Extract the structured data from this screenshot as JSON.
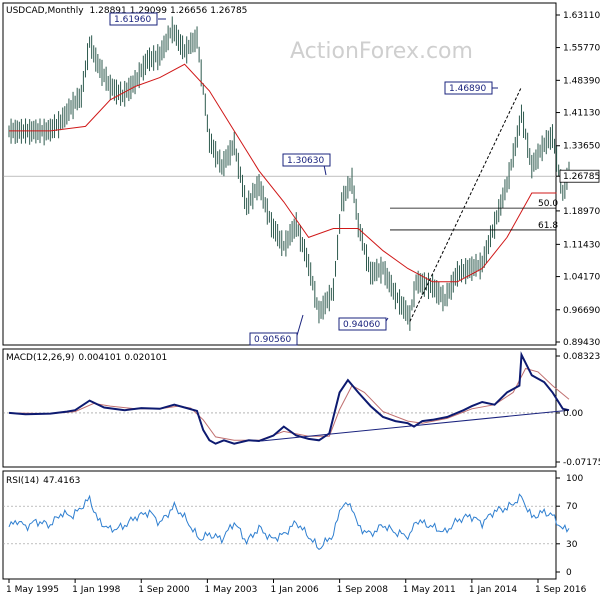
{
  "chart_data": {
    "type": "line",
    "symbol": "USDCAD",
    "timeframe": "Monthly",
    "ohlc_header": [
      "1.28891",
      "1.29099",
      "1.26656",
      "1.26785"
    ],
    "watermark": "ActionForex.com",
    "last_price_label": "1.26785",
    "x_ticks": [
      "1 May 1995",
      "1 Jan 1998",
      "1 Sep 2000",
      "1 May 2003",
      "1 Jan 2006",
      "1 Sep 2008",
      "1 May 2011",
      "1 Jan 2014",
      "1 Sep 2016"
    ],
    "colors": {
      "price": "#2e5a4e",
      "ma": "#d01818",
      "macd": "#0d1a70",
      "signal": "#c07070",
      "rsi": "#2f7fd0",
      "trend": "#1a237e",
      "fib": "#000000"
    },
    "price_panel": {
      "y_ticks": [
        "1.63110",
        "1.55770",
        "1.48390",
        "1.41130",
        "1.33650",
        "1.26785",
        "1.18970",
        "1.11430",
        "1.04170",
        "0.96690",
        "0.89430"
      ],
      "ylim": [
        0.8943,
        1.6311
      ],
      "annotations": [
        {
          "text": "1.61960",
          "date": "2002-01",
          "value": 1.6196
        },
        {
          "text": "1.30630",
          "date": "2007-11",
          "value": 1.3063
        },
        {
          "text": "0.90560",
          "date": "2007-11",
          "value": 0.9056
        },
        {
          "text": "0.94060",
          "date": "2011-07",
          "value": 0.9406
        },
        {
          "text": "1.46890",
          "date": "2016-01",
          "value": 1.4689
        }
      ],
      "fib_levels": [
        {
          "label": "50.0",
          "value": 1.1959
        },
        {
          "label": "61.8",
          "value": 1.1468
        }
      ],
      "series": [
        {
          "values": [
            [
              "1995-05",
              1.37
            ],
            [
              "1995-12",
              1.37
            ],
            [
              "1996-06",
              1.37
            ],
            [
              "1996-12",
              1.37
            ],
            [
              "1997-06",
              1.39
            ],
            [
              "1997-12",
              1.43
            ],
            [
              "1998-04",
              1.45
            ],
            [
              "1998-08",
              1.57
            ],
            [
              "1998-12",
              1.52
            ],
            [
              "1999-06",
              1.47
            ],
            [
              "1999-12",
              1.45
            ],
            [
              "2000-06",
              1.48
            ],
            [
              "2000-12",
              1.53
            ],
            [
              "2001-06",
              1.54
            ],
            [
              "2001-12",
              1.6
            ],
            [
              "2002-06",
              1.55
            ],
            [
              "2002-12",
              1.58
            ],
            [
              "2003-06",
              1.35
            ],
            [
              "2003-12",
              1.29
            ],
            [
              "2004-06",
              1.34
            ],
            [
              "2004-12",
              1.2
            ],
            [
              "2005-06",
              1.25
            ],
            [
              "2005-12",
              1.16
            ],
            [
              "2006-06",
              1.11
            ],
            [
              "2006-12",
              1.16
            ],
            [
              "2007-06",
              1.07
            ],
            [
              "2007-11",
              0.96
            ],
            [
              "2008-06",
              1.01
            ],
            [
              "2008-10",
              1.21
            ],
            [
              "2009-03",
              1.26
            ],
            [
              "2009-06",
              1.16
            ],
            [
              "2009-12",
              1.05
            ],
            [
              "2010-06",
              1.06
            ],
            [
              "2010-12",
              1.0
            ],
            [
              "2011-07",
              0.95
            ],
            [
              "2011-10",
              1.03
            ],
            [
              "2012-06",
              1.02
            ],
            [
              "2012-12",
              0.99
            ],
            [
              "2013-06",
              1.05
            ],
            [
              "2013-12",
              1.06
            ],
            [
              "2014-06",
              1.07
            ],
            [
              "2014-12",
              1.16
            ],
            [
              "2015-06",
              1.25
            ],
            [
              "2015-12",
              1.38
            ],
            [
              "2016-01",
              1.41
            ],
            [
              "2016-06",
              1.29
            ],
            [
              "2016-12",
              1.34
            ],
            [
              "2017-04",
              1.36
            ],
            [
              "2017-09",
              1.23
            ],
            [
              "2017-12",
              1.28
            ]
          ]
        },
        {
          "values": [
            [
              "1995-05",
              1.37
            ],
            [
              "1997-01",
              1.37
            ],
            [
              "1998-06",
              1.38
            ],
            [
              "1999-06",
              1.44
            ],
            [
              "2000-06",
              1.47
            ],
            [
              "2001-06",
              1.49
            ],
            [
              "2002-06",
              1.52
            ],
            [
              "2003-06",
              1.46
            ],
            [
              "2004-06",
              1.37
            ],
            [
              "2005-06",
              1.28
            ],
            [
              "2006-06",
              1.21
            ],
            [
              "2007-06",
              1.13
            ],
            [
              "2008-06",
              1.15
            ],
            [
              "2009-06",
              1.15
            ],
            [
              "2010-06",
              1.1
            ],
            [
              "2011-06",
              1.06
            ],
            [
              "2012-06",
              1.03
            ],
            [
              "2013-06",
              1.03
            ],
            [
              "2014-06",
              1.06
            ],
            [
              "2015-06",
              1.13
            ],
            [
              "2016-06",
              1.23
            ],
            [
              "2017-06",
              1.23
            ]
          ]
        }
      ]
    },
    "macd_panel": {
      "label": "MACD(12,26,9)",
      "values_header": [
        "0.004101",
        "0.020101"
      ],
      "y_ticks": [
        "0.083235",
        "0.00",
        "-0.071752"
      ],
      "ylim": [
        -0.071752,
        0.083235
      ],
      "series": [
        {
          "values": [
            [
              "1995-05",
              0.0
            ],
            [
              "1996-01",
              -0.002
            ],
            [
              "1997-01",
              -0.001
            ],
            [
              "1997-09",
              0.002
            ],
            [
              "1998-01",
              0.004
            ],
            [
              "1998-08",
              0.018
            ],
            [
              "1999-03",
              0.008
            ],
            [
              "2000-01",
              0.004
            ],
            [
              "2000-09",
              0.007
            ],
            [
              "2001-06",
              0.006
            ],
            [
              "2002-01",
              0.012
            ],
            [
              "2002-06",
              0.008
            ],
            [
              "2002-12",
              0.003
            ],
            [
              "2003-03",
              -0.025
            ],
            [
              "2003-06",
              -0.04
            ],
            [
              "2003-09",
              -0.045
            ],
            [
              "2004-01",
              -0.04
            ],
            [
              "2004-06",
              -0.045
            ],
            [
              "2005-01",
              -0.04
            ],
            [
              "2005-06",
              -0.041
            ],
            [
              "2006-01",
              -0.033
            ],
            [
              "2006-06",
              -0.02
            ],
            [
              "2006-12",
              -0.033
            ],
            [
              "2007-06",
              -0.038
            ],
            [
              "2007-11",
              -0.04
            ],
            [
              "2008-04",
              -0.03
            ],
            [
              "2008-09",
              0.03
            ],
            [
              "2009-01",
              0.048
            ],
            [
              "2009-06",
              0.03
            ],
            [
              "2009-12",
              0.01
            ],
            [
              "2010-06",
              -0.006
            ],
            [
              "2010-12",
              -0.012
            ],
            [
              "2011-06",
              -0.015
            ],
            [
              "2011-09",
              -0.02
            ],
            [
              "2012-01",
              -0.012
            ],
            [
              "2012-06",
              -0.01
            ],
            [
              "2013-01",
              -0.006
            ],
            [
              "2013-09",
              0.004
            ],
            [
              "2014-01",
              0.01
            ],
            [
              "2014-06",
              0.016
            ],
            [
              "2014-12",
              0.012
            ],
            [
              "2015-06",
              0.03
            ],
            [
              "2015-12",
              0.04
            ],
            [
              "2016-01",
              0.085
            ],
            [
              "2016-06",
              0.055
            ],
            [
              "2016-12",
              0.045
            ],
            [
              "2017-04",
              0.03
            ],
            [
              "2017-09",
              0.006
            ],
            [
              "2017-12",
              0.004
            ]
          ]
        },
        {
          "values": [
            [
              "1995-05",
              0.0
            ],
            [
              "1997-01",
              -0.001
            ],
            [
              "1998-01",
              0.002
            ],
            [
              "1998-10",
              0.014
            ],
            [
              "1999-06",
              0.01
            ],
            [
              "2000-06",
              0.006
            ],
            [
              "2001-06",
              0.006
            ],
            [
              "2002-03",
              0.01
            ],
            [
              "2002-09",
              0.007
            ],
            [
              "2003-03",
              -0.01
            ],
            [
              "2003-09",
              -0.035
            ],
            [
              "2004-06",
              -0.04
            ],
            [
              "2005-06",
              -0.04
            ],
            [
              "2006-06",
              -0.027
            ],
            [
              "2007-06",
              -0.034
            ],
            [
              "2008-04",
              -0.034
            ],
            [
              "2008-09",
              0.005
            ],
            [
              "2009-03",
              0.04
            ],
            [
              "2009-09",
              0.03
            ],
            [
              "2010-06",
              0.002
            ],
            [
              "2011-06",
              -0.012
            ],
            [
              "2012-01",
              -0.015
            ],
            [
              "2013-01",
              -0.008
            ],
            [
              "2014-01",
              0.006
            ],
            [
              "2014-12",
              0.012
            ],
            [
              "2015-09",
              0.03
            ],
            [
              "2016-03",
              0.065
            ],
            [
              "2016-09",
              0.06
            ],
            [
              "2017-04",
              0.04
            ],
            [
              "2017-12",
              0.02
            ]
          ]
        }
      ]
    },
    "rsi_panel": {
      "label": "RSI(14)",
      "value_header": "47.4163",
      "y_ticks": [
        "100",
        "70",
        "30",
        "0"
      ],
      "ylim": [
        0,
        100
      ],
      "levels": [
        70,
        30
      ],
      "series": [
        {
          "values": [
            [
              "1995-05",
              48
            ],
            [
              "1995-09",
              55
            ],
            [
              "1996-01",
              48
            ],
            [
              "1996-06",
              54
            ],
            [
              "1997-01",
              50
            ],
            [
              "1997-06",
              62
            ],
            [
              "1997-12",
              60
            ],
            [
              "1998-08",
              78
            ],
            [
              "1998-12",
              55
            ],
            [
              "1999-06",
              45
            ],
            [
              "1999-12",
              48
            ],
            [
              "2000-06",
              58
            ],
            [
              "2001-01",
              64
            ],
            [
              "2001-06",
              52
            ],
            [
              "2002-01",
              70
            ],
            [
              "2002-06",
              58
            ],
            [
              "2003-01",
              35
            ],
            [
              "2003-06",
              40
            ],
            [
              "2003-12",
              35
            ],
            [
              "2004-06",
              53
            ],
            [
              "2004-12",
              32
            ],
            [
              "2005-06",
              47
            ],
            [
              "2005-12",
              35
            ],
            [
              "2006-06",
              40
            ],
            [
              "2006-12",
              53
            ],
            [
              "2007-06",
              38
            ],
            [
              "2007-11",
              25
            ],
            [
              "2008-06",
              40
            ],
            [
              "2008-10",
              72
            ],
            [
              "2009-03",
              70
            ],
            [
              "2009-06",
              48
            ],
            [
              "2009-12",
              40
            ],
            [
              "2010-06",
              50
            ],
            [
              "2010-12",
              42
            ],
            [
              "2011-07",
              38
            ],
            [
              "2011-10",
              55
            ],
            [
              "2012-06",
              48
            ],
            [
              "2012-12",
              42
            ],
            [
              "2013-06",
              55
            ],
            [
              "2013-12",
              60
            ],
            [
              "2014-06",
              52
            ],
            [
              "2014-12",
              65
            ],
            [
              "2015-06",
              68
            ],
            [
              "2015-12",
              78
            ],
            [
              "2016-01",
              80
            ],
            [
              "2016-06",
              58
            ],
            [
              "2016-12",
              64
            ],
            [
              "2017-04",
              60
            ],
            [
              "2017-09",
              45
            ],
            [
              "2017-12",
              47
            ]
          ]
        }
      ]
    }
  }
}
